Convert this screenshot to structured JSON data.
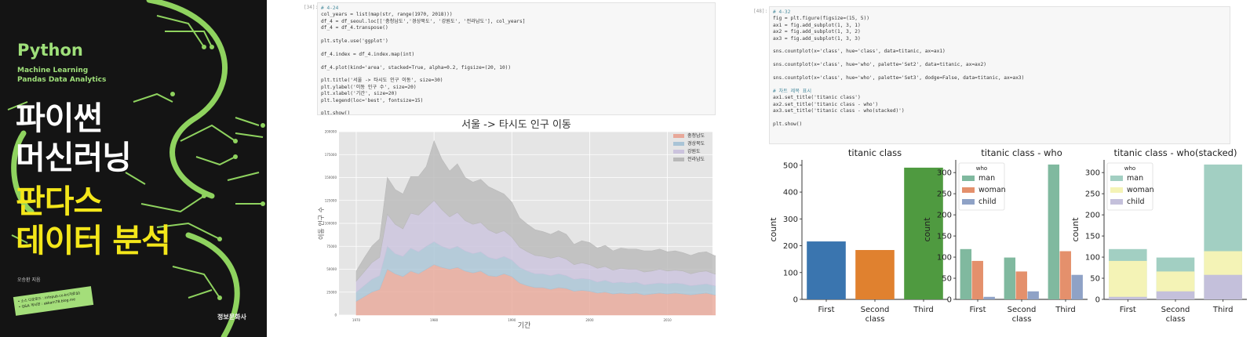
{
  "cover": {
    "title_latin": "Python",
    "subtitle_line1": "Machine Learning",
    "subtitle_line2": "Pandas Data Analytics",
    "title_line1": "파이썬",
    "title_line2": "머신러닝",
    "title_line3": "판다스",
    "title_line4": "데이터 분석",
    "author": "오승환 지음",
    "site_line1": "• 소스 다운로드 : infopub.co.kr(자료실)",
    "site_line2": "• Q&A 게시판 : akkam78.blog.me",
    "publisher": "정보문화사",
    "colors": {
      "background": "#141414",
      "circuit": "#8fd35f",
      "title": "#ffffff",
      "accent_title": "#f3e61a"
    }
  },
  "cell1": {
    "prompt": "[34]:",
    "lines": [
      "# 4-24",
      "col_years = list(map(str, range(1970, 2018)))",
      "df_4 = df_seoul.loc[['충청남도','경상북도', '강원도', '전라남도'], col_years]",
      "df_4 = df_4.transpose()",
      "",
      "plt.style.use('ggplot')",
      "",
      "df_4.index = df_4.index.map(int)",
      "",
      "df_4.plot(kind='area', stacked=True, alpha=0.2, figsize=(20, 10))",
      "",
      "plt.title('서울 -> 타시도 인구 이동', size=30)",
      "plt.ylabel('이동 인구 수', size=20)",
      "plt.xlabel('기간', size=20)",
      "plt.legend(loc='best', fontsize=15)",
      "",
      "plt.show()"
    ]
  },
  "cell2": {
    "prompt": "[48]:",
    "lines": [
      "# 4-32",
      "fig = plt.figure(figsize=(15, 5))",
      "ax1 = fig.add_subplot(1, 3, 1)",
      "ax2 = fig.add_subplot(1, 3, 2)",
      "ax3 = fig.add_subplot(1, 3, 3)",
      "",
      "sns.countplot(x='class', hue='class', data=titanic, ax=ax1)",
      "",
      "sns.countplot(x='class', hue='who', palette='Set2', data=titanic, ax=ax2)",
      "",
      "sns.countplot(x='class', hue='who', palette='Set3', dodge=False, data=titanic, ax=ax3)",
      "",
      "# 차트 제목 표시",
      "ax1.set_title('titanic class')",
      "ax2.set_title('titanic class - who')",
      "ax3.set_title('titanic class - who(stacked)')",
      "",
      "plt.show()"
    ]
  },
  "chart_data": [
    {
      "type": "area",
      "title": "서울 -> 타시도 인구 이동",
      "xlabel": "기간",
      "ylabel": "이동 인구 수",
      "xlim": [
        1970,
        2017
      ],
      "ylim": [
        0,
        200000
      ],
      "xticks": [
        1970,
        1980,
        1990,
        2000,
        2010
      ],
      "yticks": [
        0,
        25000,
        50000,
        75000,
        100000,
        125000,
        150000,
        175000,
        200000
      ],
      "legend_position": "top-right",
      "x": [
        1970,
        1971,
        1972,
        1973,
        1974,
        1975,
        1976,
        1977,
        1978,
        1979,
        1980,
        1981,
        1982,
        1983,
        1984,
        1985,
        1986,
        1987,
        1988,
        1989,
        1990,
        1991,
        1992,
        1993,
        1994,
        1995,
        1996,
        1997,
        1998,
        1999,
        2000,
        2001,
        2002,
        2003,
        2004,
        2005,
        2006,
        2007,
        2008,
        2009,
        2010,
        2011,
        2012,
        2013,
        2014,
        2015,
        2016,
        2017
      ],
      "series": [
        {
          "name": "충청남도",
          "color": "#e8a899",
          "values": [
            15000,
            20000,
            25000,
            28000,
            50000,
            45000,
            42000,
            48000,
            45000,
            50000,
            55000,
            52000,
            50000,
            52000,
            48000,
            46000,
            48000,
            43000,
            42000,
            45000,
            42000,
            35000,
            32000,
            30000,
            30000,
            28000,
            30000,
            29000,
            26000,
            27000,
            26000,
            24000,
            25000,
            23000,
            24000,
            23000,
            24000,
            22000,
            23000,
            24000,
            23000,
            24000,
            23000,
            22000,
            23000,
            24000,
            22000,
            21000
          ]
        },
        {
          "name": "경상북도",
          "color": "#a9c4d6",
          "values": [
            10000,
            12000,
            14000,
            15000,
            25000,
            22000,
            22000,
            25000,
            24000,
            25000,
            25000,
            23000,
            22000,
            23000,
            22000,
            21000,
            21000,
            20000,
            19000,
            19000,
            18000,
            17000,
            16000,
            15000,
            15000,
            15000,
            15000,
            14000,
            13000,
            13000,
            13000,
            12000,
            13000,
            12000,
            12000,
            12000,
            12000,
            11000,
            11000,
            11000,
            11000,
            11000,
            11000,
            10000,
            10000,
            10000,
            10000,
            10000
          ]
        },
        {
          "name": "강원도",
          "color": "#cbc3dd",
          "values": [
            12000,
            15000,
            18000,
            20000,
            35000,
            32000,
            30000,
            38000,
            40000,
            42000,
            45000,
            40000,
            35000,
            37000,
            33000,
            32000,
            32000,
            30000,
            28000,
            28000,
            25000,
            22000,
            21000,
            20000,
            19000,
            19000,
            19000,
            18000,
            16000,
            17000,
            16000,
            15000,
            15000,
            14000,
            15000,
            15000,
            14000,
            14000,
            14000,
            15000,
            14000,
            14000,
            14000,
            13000,
            14000,
            14000,
            13000,
            12000
          ]
        },
        {
          "name": "전라남도",
          "color": "#b9b9b9",
          "values": [
            11000,
            15000,
            18000,
            20000,
            40000,
            38000,
            38000,
            40000,
            42000,
            45000,
            65000,
            55000,
            50000,
            53000,
            47000,
            46000,
            47000,
            47000,
            47000,
            40000,
            38000,
            32000,
            30000,
            28000,
            27000,
            26000,
            28000,
            27000,
            22000,
            24000,
            24000,
            22000,
            23000,
            21000,
            22000,
            22000,
            22000,
            23000,
            22000,
            22000,
            21000,
            21000,
            20000,
            20000,
            21000,
            21000,
            20000,
            20000
          ]
        }
      ]
    },
    {
      "type": "bar",
      "title": "titanic class",
      "xlabel": "class",
      "ylabel": "count",
      "categories": [
        "First",
        "Second class",
        "Third"
      ],
      "values": [
        216,
        184,
        491
      ],
      "colors": [
        "#3a75af",
        "#e0812f",
        "#4f9a40"
      ],
      "ylim": [
        0,
        520
      ],
      "yticks": [
        0,
        100,
        200,
        300,
        400,
        500
      ]
    },
    {
      "type": "bar",
      "title": "titanic class - who",
      "xlabel": "class",
      "ylabel": "count",
      "legend_title": "who",
      "legend_position": "top-left",
      "categories": [
        "First",
        "Second class",
        "Third"
      ],
      "ylim": [
        0,
        330
      ],
      "yticks": [
        0,
        50,
        100,
        150,
        200,
        250,
        300
      ],
      "series": [
        {
          "name": "man",
          "color": "#80b99f",
          "values": [
            119,
            99,
            319
          ]
        },
        {
          "name": "woman",
          "color": "#e4906c",
          "values": [
            91,
            66,
            114
          ]
        },
        {
          "name": "child",
          "color": "#8fa2c6",
          "values": [
            6,
            19,
            58
          ]
        }
      ]
    },
    {
      "type": "bar",
      "title": "titanic class - who(stacked)",
      "xlabel": "class",
      "ylabel": "count",
      "legend_title": "who",
      "legend_position": "top-left",
      "categories": [
        "First",
        "Second class",
        "Third"
      ],
      "ylim": [
        0,
        330
      ],
      "yticks": [
        0,
        50,
        100,
        150,
        200,
        250,
        300
      ],
      "series": [
        {
          "name": "man",
          "color": "#a2cfc2",
          "values": [
            119,
            99,
            319
          ]
        },
        {
          "name": "woman",
          "color": "#f4f3b6",
          "values": [
            91,
            66,
            114
          ]
        },
        {
          "name": "child",
          "color": "#c4c0db",
          "values": [
            6,
            19,
            58
          ]
        }
      ]
    }
  ]
}
